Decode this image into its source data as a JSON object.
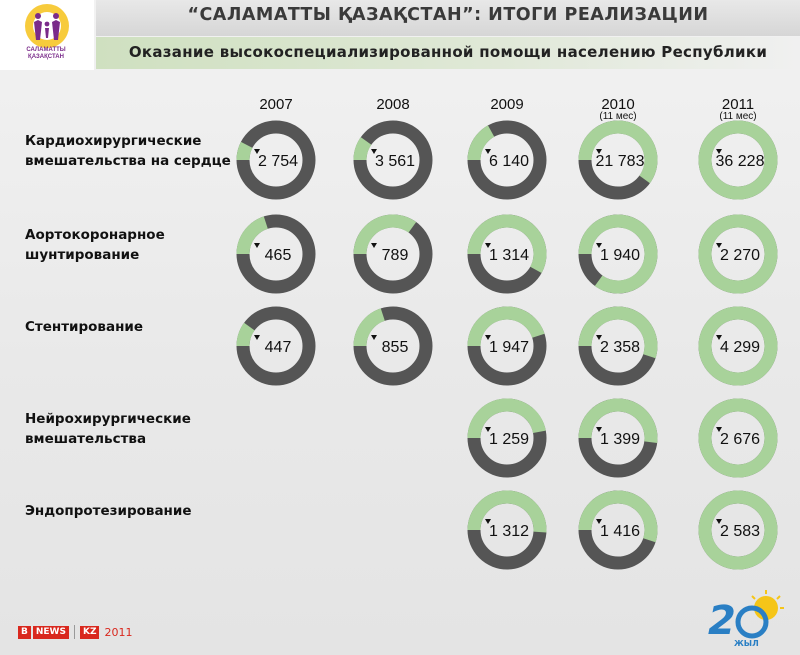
{
  "header": {
    "title": "“САЛАМАТТЫ ҚАЗАҚСТАН”: ИТОГИ РЕАЛИЗАЦИИ",
    "subtitle": "Оказание высокоспециализированной помощи населению Республики",
    "logo_text": "САЛАМАТТЫ ҚАЗАҚСТАН"
  },
  "footer": {
    "brand_b": "B",
    "brand_news": "NEWS",
    "brand_kz": "KZ",
    "brand_year": "2011",
    "logo_caption": "ЖЫЛ"
  },
  "colors": {
    "ring_dark": "#555555",
    "ring_light": "#a8d29a",
    "background": "#ececec"
  },
  "chart_data": {
    "type": "donut-matrix",
    "columns": [
      {
        "label": "2007",
        "note": ""
      },
      {
        "label": "2008",
        "note": ""
      },
      {
        "label": "2009",
        "note": ""
      },
      {
        "label": "2010",
        "note": "(11 мес)"
      },
      {
        "label": "2011",
        "note": "(11 мес)"
      }
    ],
    "rows": [
      {
        "label": [
          "Кардиохирургические",
          "вмешательства на сердце"
        ],
        "cells": [
          {
            "value": "2 754",
            "fraction": 0.076
          },
          {
            "value": "3 561",
            "fraction": 0.098
          },
          {
            "value": "6 140",
            "fraction": 0.17
          },
          {
            "value": "21 783",
            "fraction": 0.6
          },
          {
            "value": "36 228",
            "fraction": 1.0
          }
        ]
      },
      {
        "label": [
          "Аортокоронарное",
          "шунтирование"
        ],
        "cells": [
          {
            "value": "465",
            "fraction": 0.2
          },
          {
            "value": "789",
            "fraction": 0.35
          },
          {
            "value": "1 314",
            "fraction": 0.58
          },
          {
            "value": "1 940",
            "fraction": 0.85
          },
          {
            "value": "2 270",
            "fraction": 1.0
          }
        ]
      },
      {
        "label": [
          "Стентирование"
        ],
        "cells": [
          {
            "value": "447",
            "fraction": 0.1
          },
          {
            "value": "855",
            "fraction": 0.2
          },
          {
            "value": "1 947",
            "fraction": 0.45
          },
          {
            "value": "2 358",
            "fraction": 0.55
          },
          {
            "value": "4 299",
            "fraction": 1.0
          }
        ]
      },
      {
        "label": [
          "Нейрохирургические",
          "вмешательства"
        ],
        "cells": [
          null,
          null,
          {
            "value": "1 259",
            "fraction": 0.47
          },
          {
            "value": "1 399",
            "fraction": 0.52
          },
          {
            "value": "2 676",
            "fraction": 1.0
          }
        ]
      },
      {
        "label": [
          "Эндопротезирование"
        ],
        "cells": [
          null,
          null,
          {
            "value": "1 312",
            "fraction": 0.51
          },
          {
            "value": "1 416",
            "fraction": 0.55
          },
          {
            "value": "2 583",
            "fraction": 1.0
          }
        ]
      }
    ]
  }
}
